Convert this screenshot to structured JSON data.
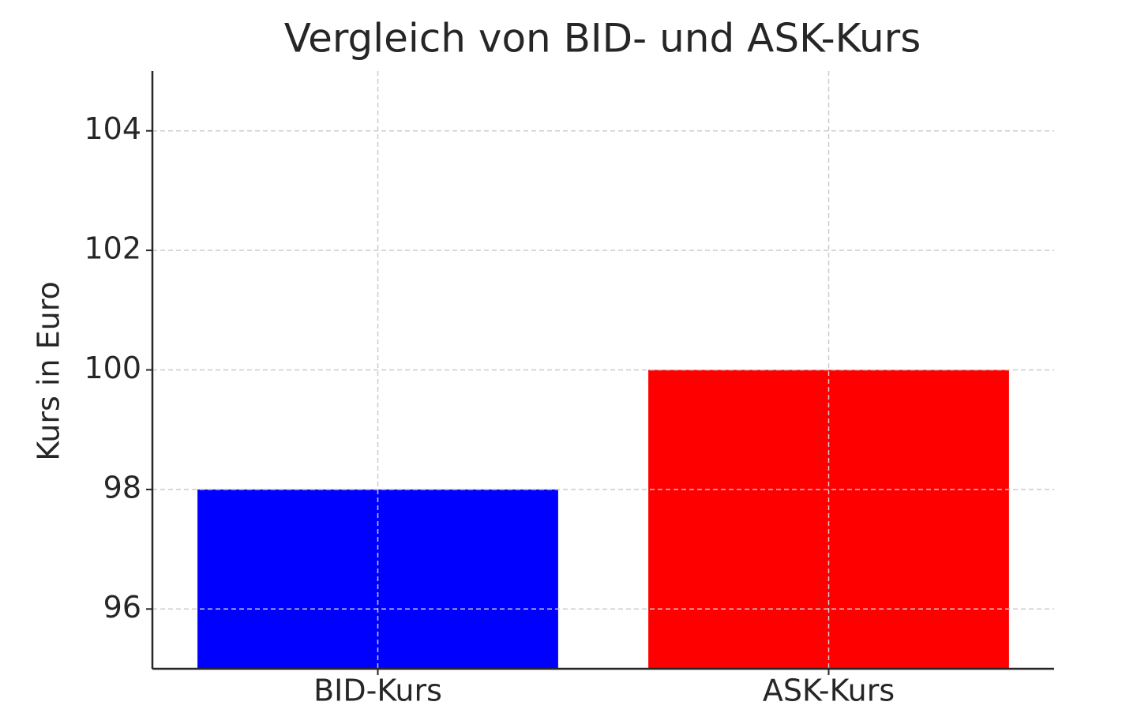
{
  "chart_data": {
    "type": "bar",
    "title": "Vergleich von BID- und ASK-Kurs",
    "y_label": "Kurs in Euro",
    "categories": [
      "BID-Kurs",
      "ASK-Kurs"
    ],
    "values": [
      98,
      100
    ],
    "colors": [
      "#0000ff",
      "#ff0000"
    ],
    "ylim": [
      95,
      105
    ],
    "yticks": [
      96,
      98,
      100,
      102,
      104
    ],
    "grid": true
  }
}
